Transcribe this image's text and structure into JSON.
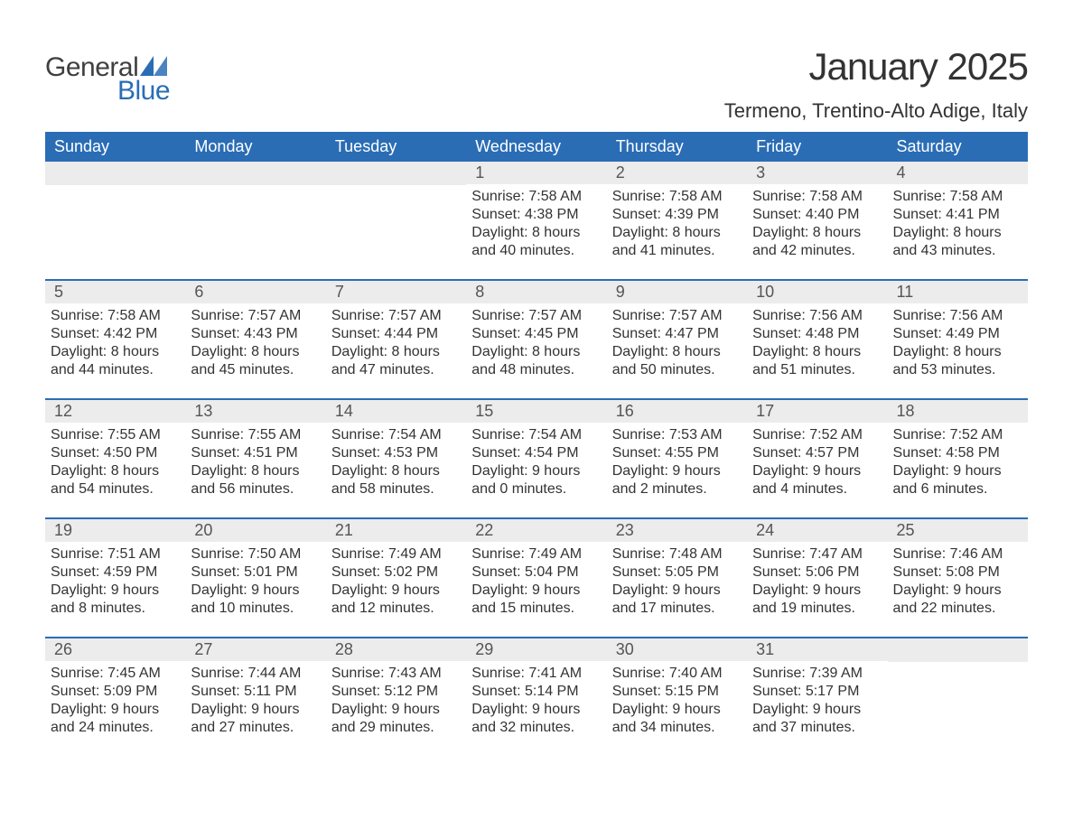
{
  "brand": {
    "logo_text_1": "General",
    "logo_text_2": "Blue",
    "logo_color_1": "#3f3f3f",
    "logo_color_2": "#2a6db5",
    "logo_triangle_color": "#2a6db5"
  },
  "title": {
    "month": "January 2025",
    "location": "Termeno, Trentino-Alto Adige, Italy"
  },
  "colors": {
    "header_bg": "#2a6db5",
    "header_text": "#ffffff",
    "daynum_bg": "#ececec",
    "body_text": "#333333",
    "week_border": "#2a6db5",
    "page_bg": "#ffffff"
  },
  "fonts": {
    "month_title_size_pt": 32,
    "location_size_pt": 17,
    "weekday_size_pt": 14,
    "daynum_size_pt": 14,
    "body_size_pt": 12
  },
  "layout": {
    "columns": 7,
    "weeks": 5,
    "first_weekday": "Sunday"
  },
  "weekdays": [
    "Sunday",
    "Monday",
    "Tuesday",
    "Wednesday",
    "Thursday",
    "Friday",
    "Saturday"
  ],
  "weeks": [
    [
      null,
      null,
      null,
      {
        "n": "1",
        "sunrise": "7:58 AM",
        "sunset": "4:38 PM",
        "dh": "8",
        "dm": "40"
      },
      {
        "n": "2",
        "sunrise": "7:58 AM",
        "sunset": "4:39 PM",
        "dh": "8",
        "dm": "41"
      },
      {
        "n": "3",
        "sunrise": "7:58 AM",
        "sunset": "4:40 PM",
        "dh": "8",
        "dm": "42"
      },
      {
        "n": "4",
        "sunrise": "7:58 AM",
        "sunset": "4:41 PM",
        "dh": "8",
        "dm": "43"
      }
    ],
    [
      {
        "n": "5",
        "sunrise": "7:58 AM",
        "sunset": "4:42 PM",
        "dh": "8",
        "dm": "44"
      },
      {
        "n": "6",
        "sunrise": "7:57 AM",
        "sunset": "4:43 PM",
        "dh": "8",
        "dm": "45"
      },
      {
        "n": "7",
        "sunrise": "7:57 AM",
        "sunset": "4:44 PM",
        "dh": "8",
        "dm": "47"
      },
      {
        "n": "8",
        "sunrise": "7:57 AM",
        "sunset": "4:45 PM",
        "dh": "8",
        "dm": "48"
      },
      {
        "n": "9",
        "sunrise": "7:57 AM",
        "sunset": "4:47 PM",
        "dh": "8",
        "dm": "50"
      },
      {
        "n": "10",
        "sunrise": "7:56 AM",
        "sunset": "4:48 PM",
        "dh": "8",
        "dm": "51"
      },
      {
        "n": "11",
        "sunrise": "7:56 AM",
        "sunset": "4:49 PM",
        "dh": "8",
        "dm": "53"
      }
    ],
    [
      {
        "n": "12",
        "sunrise": "7:55 AM",
        "sunset": "4:50 PM",
        "dh": "8",
        "dm": "54"
      },
      {
        "n": "13",
        "sunrise": "7:55 AM",
        "sunset": "4:51 PM",
        "dh": "8",
        "dm": "56"
      },
      {
        "n": "14",
        "sunrise": "7:54 AM",
        "sunset": "4:53 PM",
        "dh": "8",
        "dm": "58"
      },
      {
        "n": "15",
        "sunrise": "7:54 AM",
        "sunset": "4:54 PM",
        "dh": "9",
        "dm": "0"
      },
      {
        "n": "16",
        "sunrise": "7:53 AM",
        "sunset": "4:55 PM",
        "dh": "9",
        "dm": "2"
      },
      {
        "n": "17",
        "sunrise": "7:52 AM",
        "sunset": "4:57 PM",
        "dh": "9",
        "dm": "4"
      },
      {
        "n": "18",
        "sunrise": "7:52 AM",
        "sunset": "4:58 PM",
        "dh": "9",
        "dm": "6"
      }
    ],
    [
      {
        "n": "19",
        "sunrise": "7:51 AM",
        "sunset": "4:59 PM",
        "dh": "9",
        "dm": "8"
      },
      {
        "n": "20",
        "sunrise": "7:50 AM",
        "sunset": "5:01 PM",
        "dh": "9",
        "dm": "10"
      },
      {
        "n": "21",
        "sunrise": "7:49 AM",
        "sunset": "5:02 PM",
        "dh": "9",
        "dm": "12"
      },
      {
        "n": "22",
        "sunrise": "7:49 AM",
        "sunset": "5:04 PM",
        "dh": "9",
        "dm": "15"
      },
      {
        "n": "23",
        "sunrise": "7:48 AM",
        "sunset": "5:05 PM",
        "dh": "9",
        "dm": "17"
      },
      {
        "n": "24",
        "sunrise": "7:47 AM",
        "sunset": "5:06 PM",
        "dh": "9",
        "dm": "19"
      },
      {
        "n": "25",
        "sunrise": "7:46 AM",
        "sunset": "5:08 PM",
        "dh": "9",
        "dm": "22"
      }
    ],
    [
      {
        "n": "26",
        "sunrise": "7:45 AM",
        "sunset": "5:09 PM",
        "dh": "9",
        "dm": "24"
      },
      {
        "n": "27",
        "sunrise": "7:44 AM",
        "sunset": "5:11 PM",
        "dh": "9",
        "dm": "27"
      },
      {
        "n": "28",
        "sunrise": "7:43 AM",
        "sunset": "5:12 PM",
        "dh": "9",
        "dm": "29"
      },
      {
        "n": "29",
        "sunrise": "7:41 AM",
        "sunset": "5:14 PM",
        "dh": "9",
        "dm": "32"
      },
      {
        "n": "30",
        "sunrise": "7:40 AM",
        "sunset": "5:15 PM",
        "dh": "9",
        "dm": "34"
      },
      {
        "n": "31",
        "sunrise": "7:39 AM",
        "sunset": "5:17 PM",
        "dh": "9",
        "dm": "37"
      },
      null
    ]
  ],
  "labels": {
    "sunrise": "Sunrise:",
    "sunset": "Sunset:",
    "daylight_prefix": "Daylight:",
    "hours_word": "hours",
    "and_word": "and",
    "minutes_word": "minutes."
  }
}
